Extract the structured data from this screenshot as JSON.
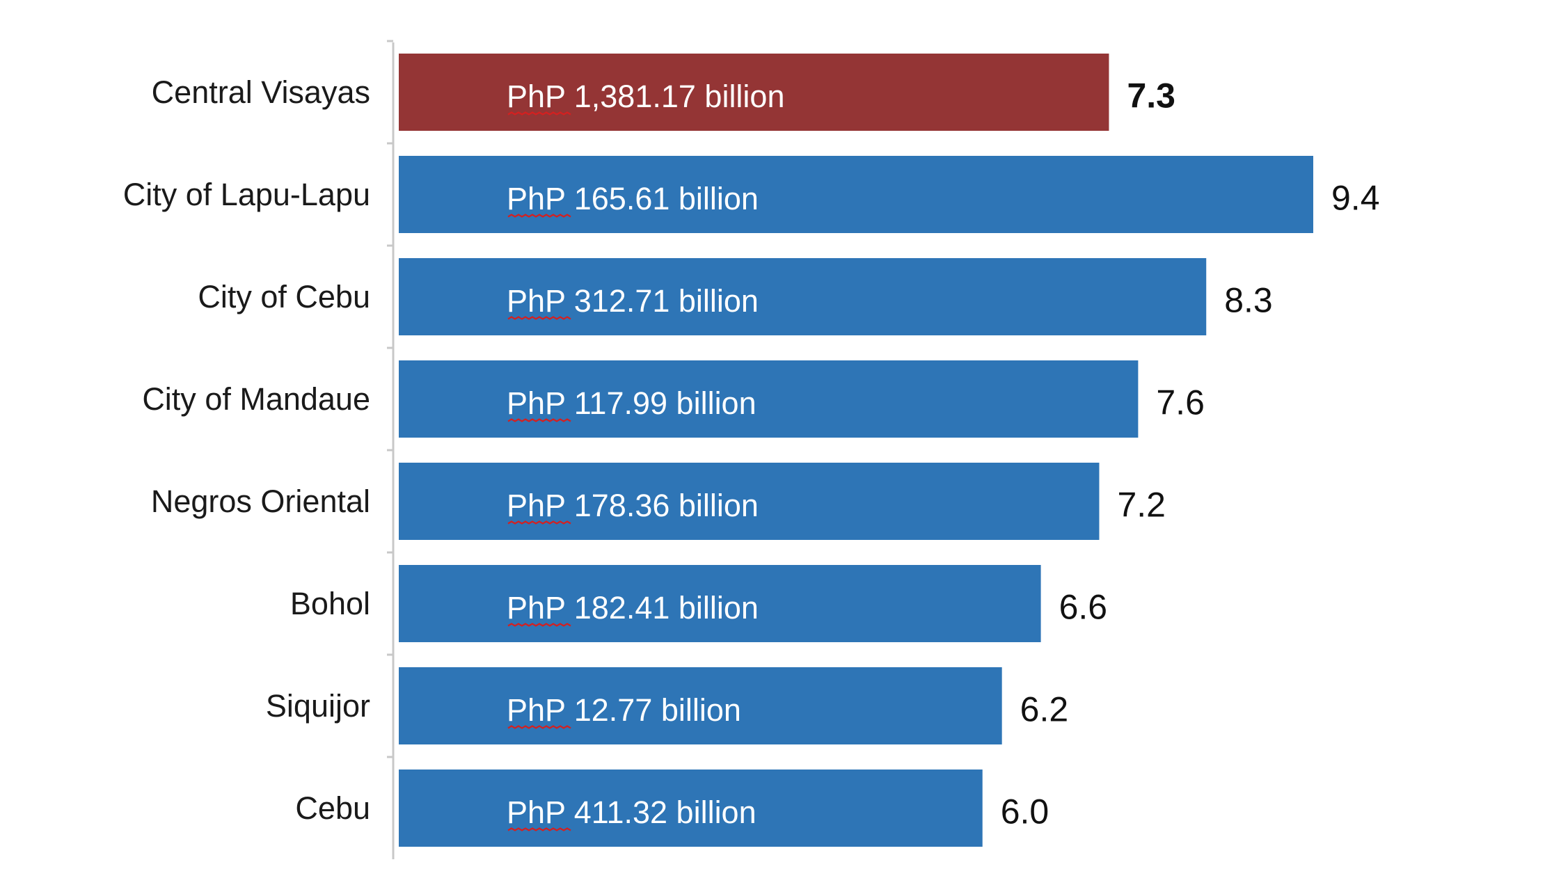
{
  "chart_data": {
    "type": "bar",
    "orientation": "horizontal",
    "categories": [
      "Central Visayas",
      "City of Lapu-Lapu",
      "City of Cebu",
      "City of Mandaue",
      "Negros Oriental",
      "Bohol",
      "Siquijor",
      "Cebu"
    ],
    "values": [
      7.3,
      9.4,
      8.3,
      7.6,
      7.2,
      6.6,
      6.2,
      6.0
    ],
    "value_labels": [
      "7.3",
      "9.4",
      "8.3",
      "7.6",
      "7.2",
      "6.6",
      "6.2",
      "6.0"
    ],
    "bar_labels": [
      "PhP 1,381.17 billion",
      "PhP 165.61 billion",
      "PhP 312.71 billion",
      "PhP 117.99 billion",
      "PhP 178.36 billion",
      "PhP 182.41 billion",
      "PhP 12.77 billion",
      "PhP 411.32 billion"
    ],
    "highlight_index": 0,
    "colors": {
      "highlight": "#943535",
      "default": "#2e75b6"
    },
    "xlim": [
      0,
      10
    ],
    "grid": false,
    "title": "",
    "xlabel": "",
    "ylabel": ""
  }
}
